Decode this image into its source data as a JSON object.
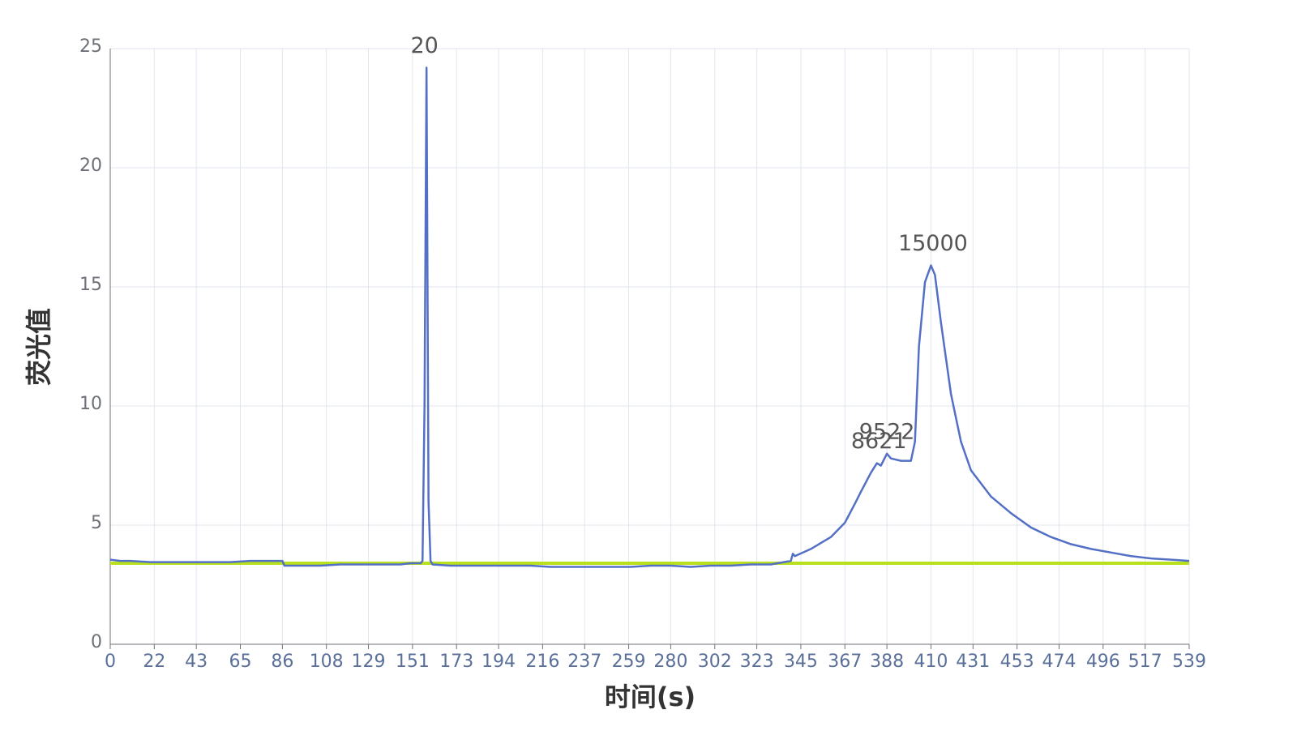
{
  "chart_data": {
    "type": "line",
    "xlabel": "时间(s)",
    "ylabel": "荧光值",
    "x": [
      0,
      5,
      10,
      20,
      30,
      40,
      50,
      60,
      70,
      80,
      86,
      87,
      95,
      105,
      115,
      125,
      135,
      145,
      150,
      155,
      156,
      157,
      158,
      159,
      160,
      161,
      170,
      180,
      190,
      200,
      210,
      220,
      230,
      240,
      250,
      260,
      270,
      280,
      290,
      300,
      310,
      320,
      330,
      340,
      341,
      342,
      350,
      360,
      367,
      372,
      375,
      380,
      383,
      385,
      388,
      390,
      395,
      400,
      402,
      404,
      407,
      410,
      412,
      415,
      420,
      425,
      430,
      440,
      450,
      460,
      470,
      480,
      490,
      500,
      510,
      520,
      530,
      539
    ],
    "series": [
      {
        "color": "#5470c6",
        "values": [
          3.55,
          3.5,
          3.5,
          3.45,
          3.45,
          3.45,
          3.45,
          3.45,
          3.5,
          3.5,
          3.5,
          3.3,
          3.3,
          3.3,
          3.35,
          3.35,
          3.35,
          3.35,
          3.4,
          3.4,
          3.5,
          10,
          24.2,
          6,
          3.5,
          3.35,
          3.3,
          3.3,
          3.3,
          3.3,
          3.3,
          3.25,
          3.25,
          3.25,
          3.25,
          3.25,
          3.3,
          3.3,
          3.25,
          3.3,
          3.3,
          3.35,
          3.35,
          3.5,
          3.8,
          3.7,
          4.0,
          4.5,
          5.1,
          5.9,
          6.4,
          7.2,
          7.6,
          7.5,
          8.0,
          7.8,
          7.7,
          7.7,
          8.5,
          12.5,
          15.2,
          15.9,
          15.5,
          13.5,
          10.5,
          8.5,
          7.3,
          6.2,
          5.5,
          4.9,
          4.5,
          4.2,
          4.0,
          3.85,
          3.7,
          3.6,
          3.55,
          3.5
        ]
      },
      {
        "color": "#b8e01c",
        "values": [
          3.4,
          3.4,
          3.4,
          3.4,
          3.4,
          3.4,
          3.4,
          3.4,
          3.4,
          3.4,
          3.4,
          3.4,
          3.4,
          3.4,
          3.4,
          3.4,
          3.4,
          3.4,
          3.4,
          3.4,
          3.4,
          3.4,
          3.4,
          3.4,
          3.4,
          3.4,
          3.4,
          3.4,
          3.4,
          3.4,
          3.4,
          3.4,
          3.4,
          3.4,
          3.4,
          3.4,
          3.4,
          3.4,
          3.4,
          3.4,
          3.4,
          3.4,
          3.4,
          3.4,
          3.4,
          3.4,
          3.4,
          3.4,
          3.4,
          3.4,
          3.4,
          3.4,
          3.4,
          3.4,
          3.4,
          3.4,
          3.4,
          3.4,
          3.4,
          3.4,
          3.4,
          3.4,
          3.4,
          3.4,
          3.4,
          3.4,
          3.4,
          3.4,
          3.4,
          3.4,
          3.4,
          3.4,
          3.4,
          3.4,
          3.4,
          3.4,
          3.4,
          3.4
        ]
      }
    ],
    "annotations": [
      {
        "label": "20",
        "x": 157,
        "y": 24.2
      },
      {
        "label": "15000",
        "x": 411,
        "y": 15.9
      },
      {
        "label": "9522",
        "x": 388,
        "y": 8.0
      },
      {
        "label": "8621",
        "x": 384,
        "y": 7.6
      }
    ],
    "xlim": [
      0,
      539
    ],
    "xticks": [
      0,
      22,
      43,
      65,
      86,
      108,
      129,
      151,
      173,
      194,
      216,
      237,
      259,
      280,
      302,
      323,
      345,
      367,
      388,
      410,
      431,
      453,
      474,
      496,
      517,
      539
    ],
    "ylim": [
      0,
      25
    ],
    "yticks": [
      0,
      5,
      10,
      15,
      20,
      25
    ],
    "grid": true
  }
}
